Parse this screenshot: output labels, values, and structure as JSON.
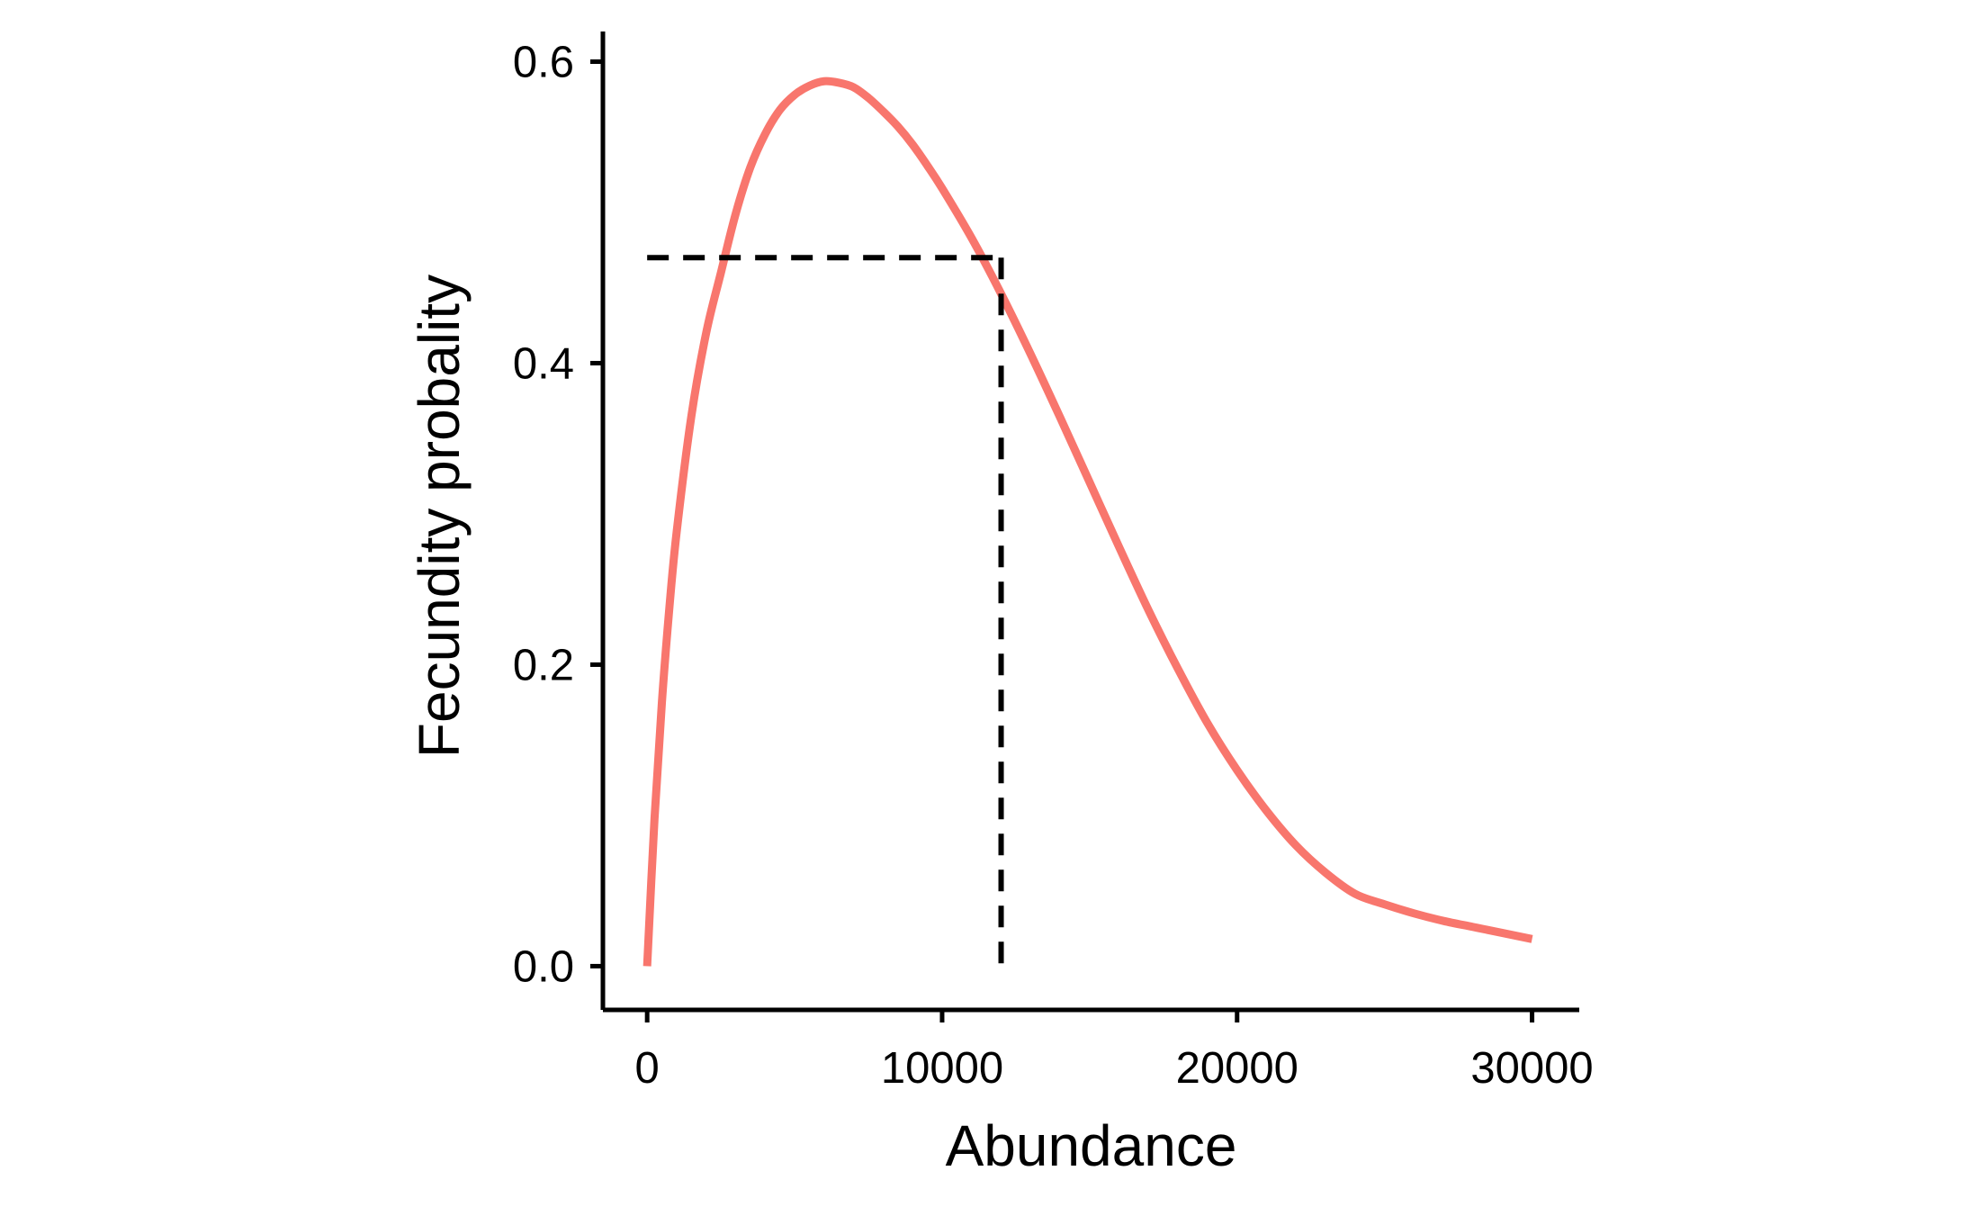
{
  "chart_data": {
    "type": "line",
    "title": "",
    "xlabel": "Abundance",
    "ylabel": "Fecundity probality",
    "xlim": [
      -1500,
      31600
    ],
    "ylim": [
      -0.029,
      0.62
    ],
    "x_ticks": [
      0,
      10000,
      20000,
      30000
    ],
    "x_tick_labels": [
      "0",
      "10000",
      "20000",
      "30000"
    ],
    "y_ticks": [
      0.0,
      0.2,
      0.4,
      0.6
    ],
    "y_tick_labels": [
      "0.0",
      "0.2",
      "0.4",
      "0.6"
    ],
    "grid": false,
    "legend": "none",
    "series": [
      {
        "color": "#F8766D",
        "x": [
          0,
          250,
          500,
          750,
          1000,
          1500,
          2000,
          2500,
          3000,
          3500,
          4000,
          4500,
          5000,
          5500,
          6000,
          6500,
          7000,
          7500,
          8000,
          8500,
          9000,
          9500,
          10000,
          11000,
          12000,
          13000,
          14000,
          15000,
          16000,
          17000,
          18000,
          19000,
          20000,
          21000,
          22000,
          23000,
          24000,
          25000,
          26000,
          27000,
          28000,
          29000,
          30000
        ],
        "y": [
          0.0,
          0.098,
          0.175,
          0.237,
          0.288,
          0.365,
          0.42,
          0.46,
          0.499,
          0.53,
          0.552,
          0.568,
          0.578,
          0.584,
          0.587,
          0.586,
          0.583,
          0.576,
          0.567,
          0.557,
          0.545,
          0.531,
          0.516,
          0.483,
          0.446,
          0.406,
          0.364,
          0.321,
          0.278,
          0.236,
          0.197,
          0.161,
          0.13,
          0.103,
          0.08,
          0.062,
          0.048,
          0.041,
          0.035,
          0.03,
          0.026,
          0.022,
          0.018
        ]
      }
    ],
    "reference_lines": [
      {
        "style": "dashed",
        "color": "#000000",
        "horizontal": {
          "y": 0.47,
          "x_from": 0,
          "x_to": 12000
        },
        "vertical": {
          "x": 12000,
          "y_from": 0.0,
          "y_to": 0.47
        }
      }
    ]
  }
}
